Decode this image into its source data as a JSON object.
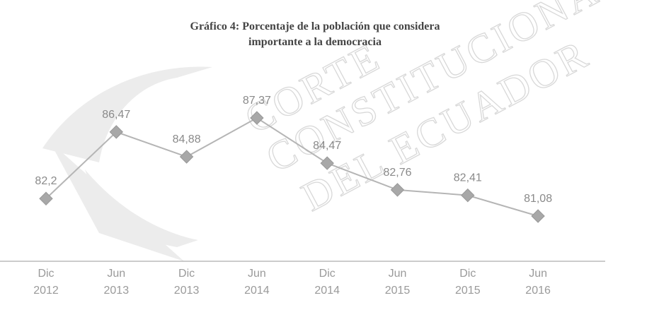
{
  "chart_data": {
    "type": "line",
    "title": [
      "Gráfico 4: Porcentaje de la población  que considera",
      "importante a la democracia"
    ],
    "watermark": [
      "CORTE",
      "CONSTITUCIONAL",
      "DEL ECUADOR"
    ],
    "categories": [
      [
        "Dic",
        "2012"
      ],
      [
        "Jun",
        "2013"
      ],
      [
        "Dic",
        "2013"
      ],
      [
        "Jun",
        "2014"
      ],
      [
        "Dic",
        "2014"
      ],
      [
        "Jun",
        "2015"
      ],
      [
        "Dic",
        "2015"
      ],
      [
        "Jun",
        "2016"
      ]
    ],
    "series": [
      {
        "name": null,
        "color": "#b5b5b5",
        "values": [
          82.2,
          86.47,
          84.88,
          87.37,
          84.47,
          82.76,
          82.41,
          81.08
        ],
        "value_labels": [
          "82,2",
          "86,47",
          "84,88",
          "87,37",
          "84,47",
          "82,76",
          "82,41",
          "81,08"
        ]
      }
    ]
  }
}
